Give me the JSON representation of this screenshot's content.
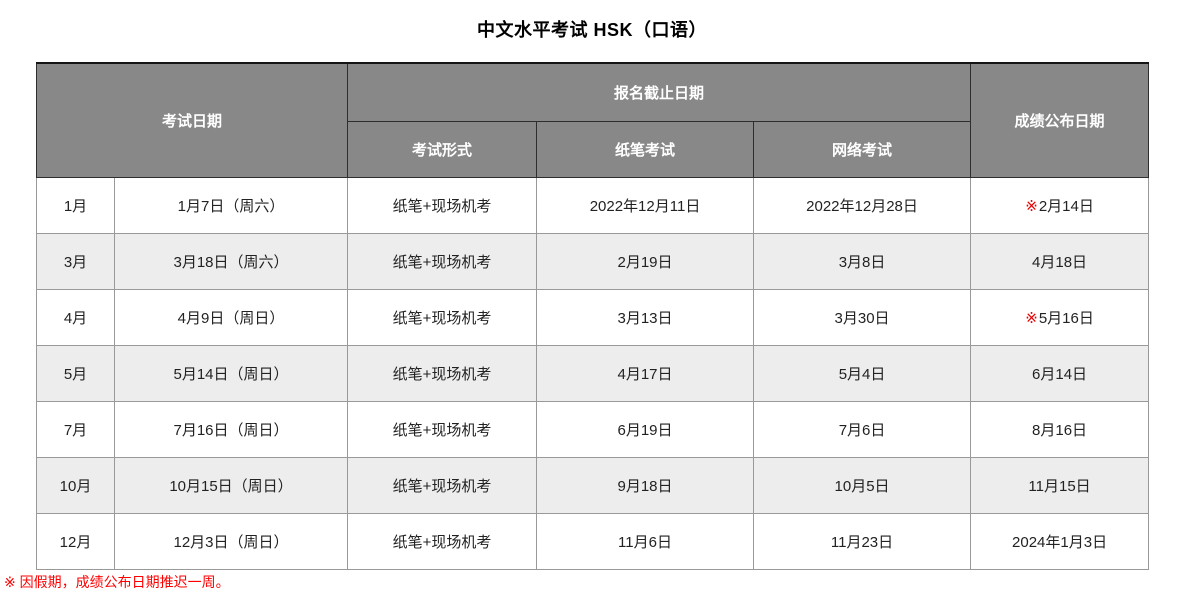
{
  "title": "中文水平考试 HSK（口语）",
  "table": {
    "headers": {
      "exam_date": "考试日期",
      "registration_deadline": "报名截止日期",
      "exam_format": "考试形式",
      "paper_exam": "纸笔考试",
      "online_exam": "网络考试",
      "results_date": "成绩公布日期"
    },
    "rows": [
      {
        "month": "1月",
        "date": "1月7日（周六）",
        "format": "纸笔+现场机考",
        "paper": "2022年12月11日",
        "online": "2022年12月28日",
        "results_marker": "※",
        "results": "2月14日"
      },
      {
        "month": "3月",
        "date": "3月18日（周六）",
        "format": "纸笔+现场机考",
        "paper": "2月19日",
        "online": "3月8日",
        "results_marker": "",
        "results": "4月18日"
      },
      {
        "month": "4月",
        "date": "4月9日（周日）",
        "format": "纸笔+现场机考",
        "paper": "3月13日",
        "online": "3月30日",
        "results_marker": "※",
        "results": "5月16日"
      },
      {
        "month": "5月",
        "date": "5月14日（周日）",
        "format": "纸笔+现场机考",
        "paper": "4月17日",
        "online": "5月4日",
        "results_marker": "",
        "results": "6月14日"
      },
      {
        "month": "7月",
        "date": "7月16日（周日）",
        "format": "纸笔+现场机考",
        "paper": "6月19日",
        "online": "7月6日",
        "results_marker": "",
        "results": "8月16日"
      },
      {
        "month": "10月",
        "date": "10月15日（周日）",
        "format": "纸笔+现场机考",
        "paper": "9月18日",
        "online": "10月5日",
        "results_marker": "",
        "results": "11月15日"
      },
      {
        "month": "12月",
        "date": "12月3日（周日）",
        "format": "纸笔+现场机考",
        "paper": "11月6日",
        "online": "11月23日",
        "results_marker": "",
        "results": "2024年1月3日"
      }
    ]
  },
  "footnote": "※ 因假期，成绩公布日期推迟一周。",
  "colors": {
    "header_bg": "#888888",
    "header_text": "#ffffff",
    "row_alt_bg": "#ededed",
    "body_border": "#999999",
    "header_border": "#2e2e2e",
    "note_red": "#ff0000",
    "marker_red": "#e60000",
    "body_text": "#222222"
  }
}
